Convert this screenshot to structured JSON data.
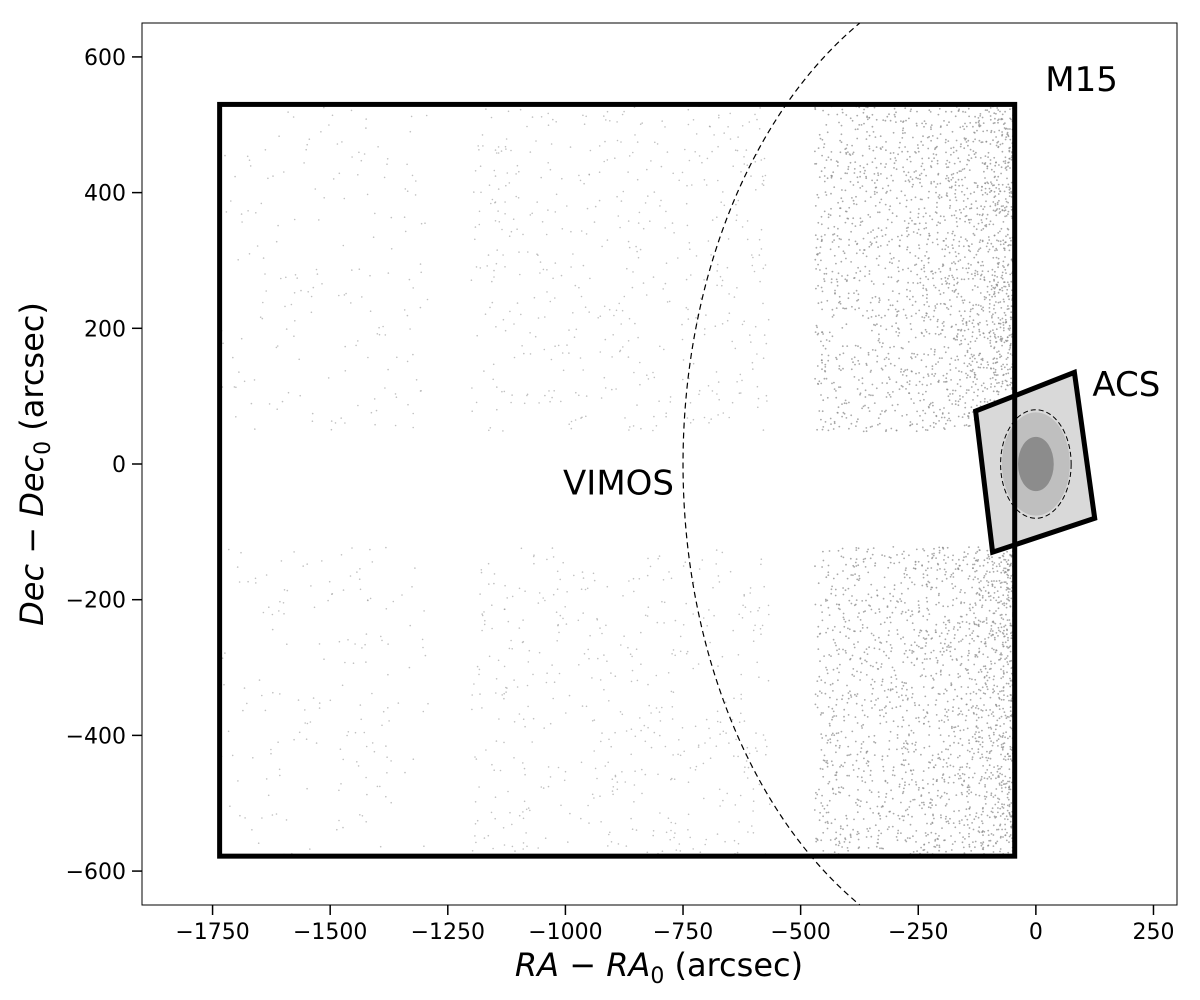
{
  "chart_data": {
    "type": "scatter",
    "xlabel": {
      "var": "RA",
      "minus": " − ",
      "var0": "RA",
      "sub": "0",
      "unit": " (arcsec)"
    },
    "ylabel": {
      "var": "Dec",
      "minus": " − ",
      "var0": "Dec",
      "sub": "0",
      "unit": " (arcsec)"
    },
    "xlim": [
      -1900,
      300
    ],
    "ylim": [
      -650,
      650
    ],
    "xticks": [
      -1750,
      -1500,
      -1250,
      -1000,
      -750,
      -500,
      -250,
      0,
      250
    ],
    "xtick_labels": [
      "−1750",
      "−1500",
      "−1250",
      "−1000",
      "−750",
      "−500",
      "−250",
      "0",
      "250"
    ],
    "yticks": [
      600,
      400,
      200,
      0,
      -200,
      -400,
      -600
    ],
    "ytick_labels": [
      "600",
      "400",
      "200",
      "0",
      "−200",
      "−400",
      "−600"
    ],
    "grid": false,
    "point_color": "#8c8c8c",
    "vimos_field": {
      "x": [
        -1735,
        -45
      ],
      "y": [
        -578,
        530
      ]
    },
    "vimos_gaps": {
      "x_gaps": [
        [
          -1290,
          -1200
        ],
        [
          -565,
          -470
        ]
      ],
      "y_gap": [
        -122,
        48
      ]
    },
    "density_zones": [
      {
        "x": [
          -1735,
          -1290
        ],
        "level": 0.05
      },
      {
        "x": [
          -1200,
          -565
        ],
        "level": 0.12
      },
      {
        "x": [
          -470,
          -45
        ],
        "level": 0.9
      }
    ],
    "acs_field": {
      "corners": [
        [
          -128,
          78
        ],
        [
          82,
          135
        ],
        [
          125,
          -80
        ],
        [
          -92,
          -130
        ]
      ],
      "center": [
        0,
        0
      ],
      "core_radius": [
        38,
        40
      ],
      "inner_ellipse_radius": [
        75,
        80
      ]
    },
    "tidal_circle": {
      "center": [
        0,
        0
      ],
      "radius": 750
    },
    "annotations": [
      {
        "text": "M15",
        "x": 20,
        "y": 550
      },
      {
        "text": "ACS",
        "x": 120,
        "y": 100
      },
      {
        "text": "VIMOS",
        "x": -1005,
        "y": -45
      }
    ]
  }
}
